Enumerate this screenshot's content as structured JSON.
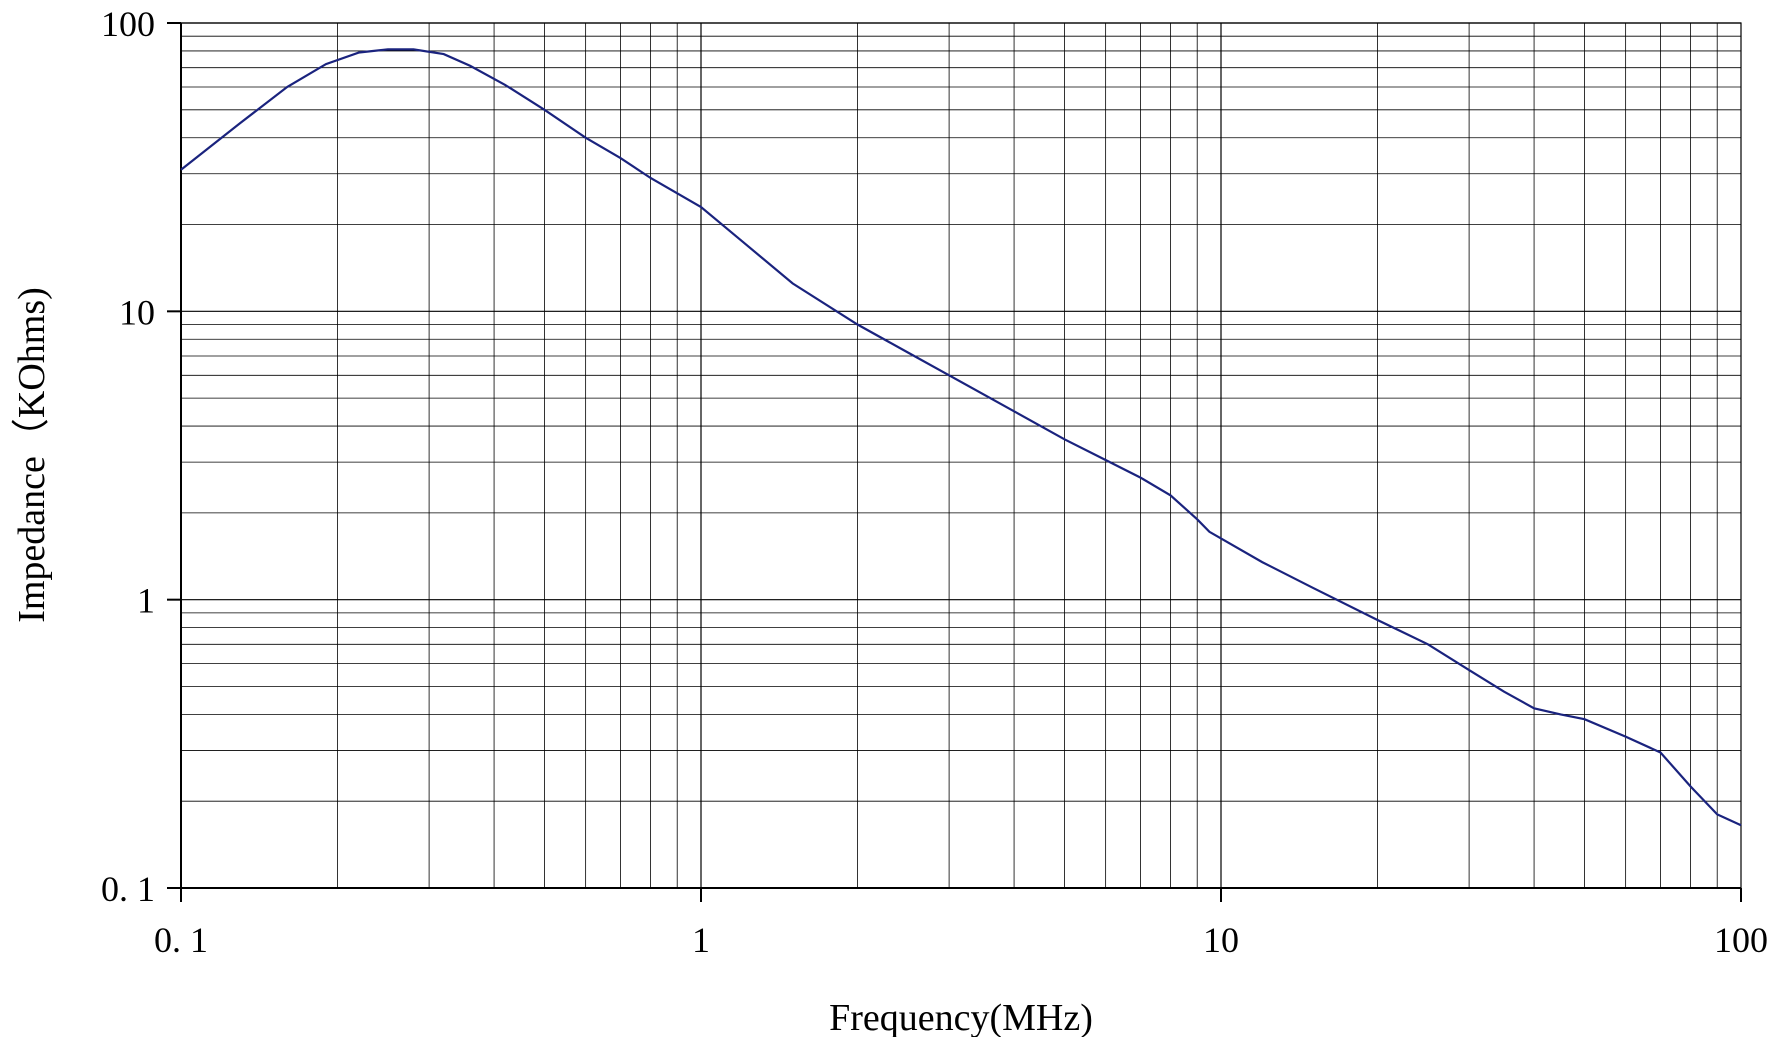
{
  "chart_data": {
    "type": "line",
    "title": "",
    "xlabel": "Frequency(MHz)",
    "ylabel": "Impedance（KOhms)",
    "x_scale": "log",
    "y_scale": "log",
    "xlim": [
      0.1,
      100
    ],
    "ylim": [
      0.1,
      100
    ],
    "grid": true,
    "legend": "none",
    "x_ticks": [
      {
        "value": 0.1,
        "label": "0. 1"
      },
      {
        "value": 1,
        "label": "1"
      },
      {
        "value": 10,
        "label": "10"
      },
      {
        "value": 100,
        "label": "100"
      }
    ],
    "y_ticks": [
      {
        "value": 0.1,
        "label": "0. 1"
      },
      {
        "value": 1,
        "label": "1"
      },
      {
        "value": 10,
        "label": "10"
      },
      {
        "value": 100,
        "label": "100"
      }
    ],
    "series": [
      {
        "color": "#1a237e",
        "x": [
          0.1,
          0.13,
          0.16,
          0.19,
          0.22,
          0.25,
          0.28,
          0.32,
          0.36,
          0.42,
          0.5,
          0.6,
          0.7,
          0.8,
          1.0,
          1.2,
          1.5,
          2.0,
          2.5,
          3.0,
          4.0,
          5.0,
          6.0,
          7.0,
          8.0,
          9.0,
          9.5,
          12,
          15,
          20,
          25,
          30,
          35,
          40,
          45,
          50,
          60,
          70,
          80,
          90,
          100
        ],
        "y": [
          31,
          45,
          60,
          72,
          79,
          81,
          81,
          78,
          71,
          61,
          50,
          40,
          34,
          29,
          23,
          17.5,
          12.5,
          9.0,
          7.2,
          6.0,
          4.5,
          3.6,
          3.05,
          2.65,
          2.3,
          1.9,
          1.72,
          1.35,
          1.1,
          0.85,
          0.7,
          0.57,
          0.48,
          0.42,
          0.4,
          0.385,
          0.335,
          0.295,
          0.225,
          0.18,
          0.165
        ]
      }
    ]
  }
}
